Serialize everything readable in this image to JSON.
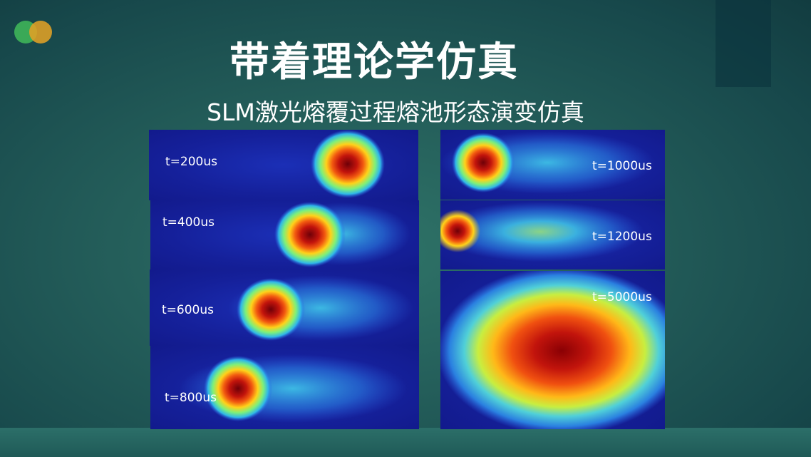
{
  "slide": {
    "title": "带着理论学仿真",
    "subtitle": "SLM激光熔覆过程熔池形态演变仿真"
  },
  "panels": [
    {
      "label": "t=200us"
    },
    {
      "label": "t=400us"
    },
    {
      "label": "t=600us"
    },
    {
      "label": "t=800us"
    },
    {
      "label": "t=1000us"
    },
    {
      "label": "t=1200us"
    },
    {
      "label": "t=5000us"
    }
  ],
  "colors": {
    "brand_green": "#3aa957",
    "brand_orange": "#e1a126",
    "heat_hot": "#8b0000",
    "heat_cold": "#1a2a9e"
  }
}
